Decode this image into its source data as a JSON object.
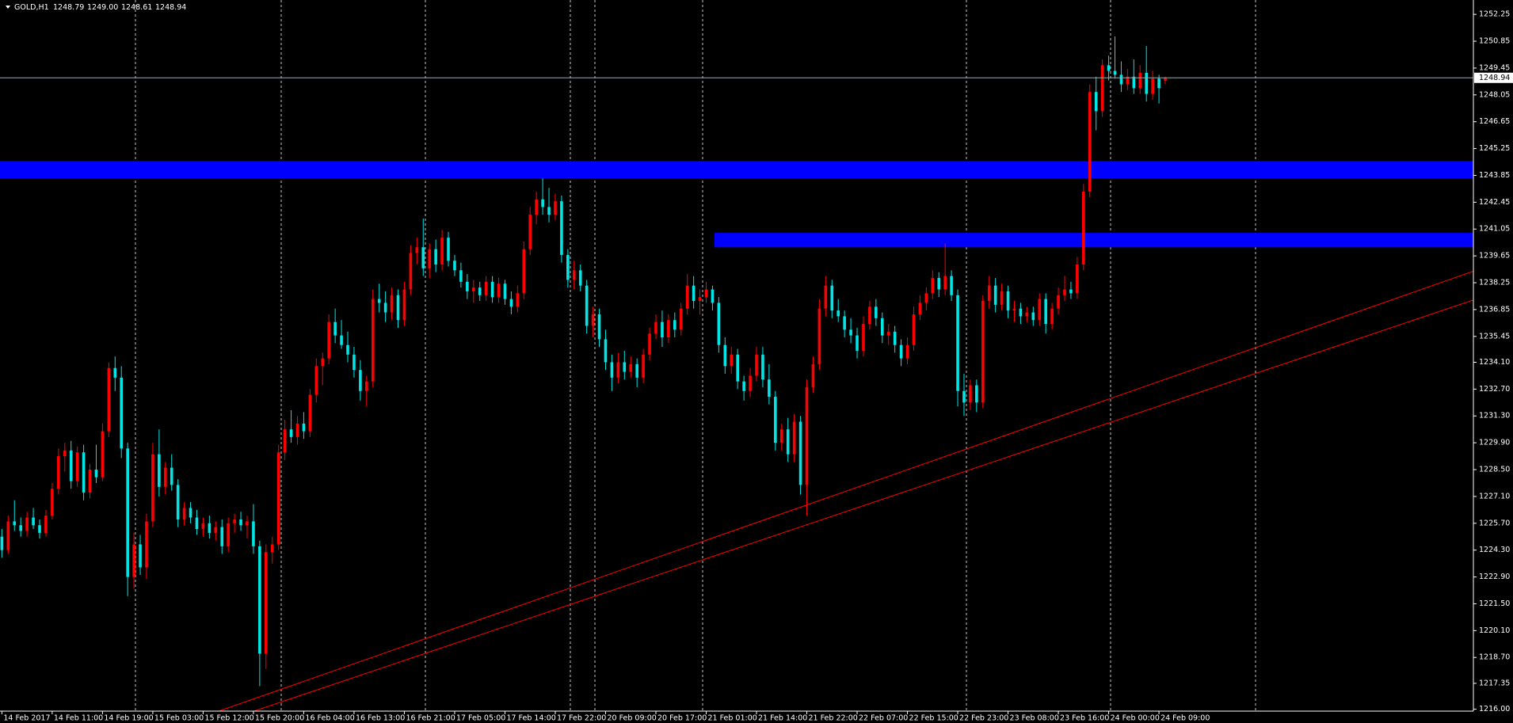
{
  "chart_data": {
    "type": "candlestick",
    "header": {
      "symbol": "GOLD,H1",
      "values": [
        "1248.79",
        "1249.00",
        "1248.61",
        "1248.94"
      ]
    },
    "up_color": "#ff0000",
    "down_color": "#00e6e6",
    "grid": true,
    "xlim": [
      -0.3,
      234
    ],
    "ylim": [
      1215.9,
      1253.0
    ],
    "xticks": [
      {
        "value": 0,
        "label": "14 Feb 2017"
      },
      {
        "value": 8,
        "label": "14 Feb 11:00"
      },
      {
        "value": 16,
        "label": "14 Feb 19:00"
      },
      {
        "value": 24,
        "label": "15 Feb 03:00"
      },
      {
        "value": 32,
        "label": "15 Feb 12:00"
      },
      {
        "value": 40,
        "label": "15 Feb 20:00"
      },
      {
        "value": 48,
        "label": "16 Feb 04:00"
      },
      {
        "value": 56,
        "label": "16 Feb 13:00"
      },
      {
        "value": 64,
        "label": "16 Feb 21:00"
      },
      {
        "value": 72,
        "label": "17 Feb 05:00"
      },
      {
        "value": 80,
        "label": "17 Feb 14:00"
      },
      {
        "value": 88,
        "label": "17 Feb 22:00"
      },
      {
        "value": 96,
        "label": "20 Feb 09:00"
      },
      {
        "value": 104,
        "label": "20 Feb 17:00"
      },
      {
        "value": 112,
        "label": "21 Feb 01:00"
      },
      {
        "value": 120,
        "label": "21 Feb 14:00"
      },
      {
        "value": 128,
        "label": "21 Feb 22:00"
      },
      {
        "value": 136,
        "label": "22 Feb 07:00"
      },
      {
        "value": 144,
        "label": "22 Feb 15:00"
      },
      {
        "value": 152,
        "label": "22 Feb 23:00"
      },
      {
        "value": 160,
        "label": "23 Feb 08:00"
      },
      {
        "value": 168,
        "label": "23 Feb 16:00"
      },
      {
        "value": 176,
        "label": "24 Feb 00:00"
      },
      {
        "value": 184,
        "label": "24 Feb 09:00"
      }
    ],
    "yticks": [
      1252.25,
      1250.85,
      1249.45,
      1248.05,
      1246.65,
      1245.25,
      1243.85,
      1242.45,
      1241.05,
      1239.65,
      1238.25,
      1236.85,
      1235.45,
      {
        "value": 1234.1,
        "label": "1234.10"
      },
      {
        "value": 1232.7,
        "label": "1232.70"
      },
      {
        "value": 1231.3,
        "label": "1231.30"
      },
      {
        "value": 1229.9,
        "label": "1229.90"
      },
      {
        "value": 1228.5,
        "label": "1228.50"
      },
      {
        "value": 1227.1,
        "label": "1227.10"
      },
      {
        "value": 1225.7,
        "label": "1225.70"
      },
      {
        "value": 1224.3,
        "label": "1224.30"
      },
      {
        "value": 1222.9,
        "label": "1222.90"
      },
      {
        "value": 1221.5,
        "label": "1221.50"
      },
      {
        "value": 1220.1,
        "label": "1220.10"
      },
      {
        "value": 1218.7,
        "label": "1218.70"
      },
      1217.35,
      {
        "value": 1216,
        "label": "1216.00"
      }
    ],
    "zones": [
      {
        "from": 1243.7,
        "to": 1244.6,
        "start": -0.3,
        "color": "#0000ff"
      },
      {
        "from": 1240.1,
        "to": 1240.85,
        "start": 113.3,
        "color": "#0000ff"
      }
    ],
    "trendlines": [
      {
        "x": [
          34.5,
          234
        ],
        "y": [
          1215.9,
          1238.85
        ],
        "color": "#ff0000"
      },
      {
        "x": [
          40.1,
          234
        ],
        "y": [
          1215.9,
          1237.35
        ],
        "color": "#ff0000"
      }
    ],
    "candles": [
      [
        1225.0,
        1225.4,
        1223.9,
        1224.3
      ],
      [
        1224.3,
        1226.1,
        1224.1,
        1225.8
      ],
      [
        1225.8,
        1226.9,
        1225.3,
        1225.6
      ],
      [
        1225.6,
        1226.0,
        1225.0,
        1225.3
      ],
      [
        1225.3,
        1226.3,
        1225.0,
        1226.0
      ],
      [
        1226.0,
        1226.5,
        1225.4,
        1225.6
      ],
      [
        1225.6,
        1225.9,
        1224.9,
        1225.2
      ],
      [
        1225.2,
        1226.4,
        1225.0,
        1226.1
      ],
      [
        1226.1,
        1227.8,
        1225.9,
        1227.5
      ],
      [
        1227.5,
        1229.6,
        1227.2,
        1229.2
      ],
      [
        1229.2,
        1229.9,
        1228.4,
        1229.5
      ],
      [
        1229.5,
        1230.0,
        1227.5,
        1227.9
      ],
      [
        1227.9,
        1229.7,
        1227.6,
        1229.4
      ],
      [
        1229.4,
        1229.8,
        1226.9,
        1227.3
      ],
      [
        1227.3,
        1228.8,
        1227.0,
        1228.5
      ],
      [
        1228.5,
        1229.8,
        1227.8,
        1228.1
      ],
      [
        1228.1,
        1230.9,
        1227.9,
        1230.5
      ],
      [
        1230.5,
        1234.1,
        1230.2,
        1233.8
      ],
      [
        1233.8,
        1234.4,
        1232.6,
        1233.3
      ],
      [
        1233.3,
        1233.9,
        1229.1,
        1229.6
      ],
      [
        1229.6,
        1229.9,
        1221.9,
        1222.9
      ],
      [
        1222.9,
        1225.2,
        1222.3,
        1224.6
      ],
      [
        1224.6,
        1225.1,
        1223.0,
        1223.4
      ],
      [
        1223.4,
        1226.2,
        1222.8,
        1225.8
      ],
      [
        1225.8,
        1229.9,
        1225.5,
        1229.3
      ],
      [
        1229.3,
        1230.6,
        1227.1,
        1227.6
      ],
      [
        1227.6,
        1228.9,
        1227.2,
        1228.6
      ],
      [
        1228.6,
        1229.3,
        1227.4,
        1227.7
      ],
      [
        1227.7,
        1228.0,
        1225.5,
        1225.9
      ],
      [
        1225.9,
        1226.8,
        1225.6,
        1226.5
      ],
      [
        1226.5,
        1226.8,
        1225.7,
        1226.0
      ],
      [
        1226.0,
        1226.4,
        1225.1,
        1225.4
      ],
      [
        1225.4,
        1226.0,
        1225.0,
        1225.7
      ],
      [
        1225.7,
        1226.1,
        1224.9,
        1225.2
      ],
      [
        1225.2,
        1225.8,
        1224.8,
        1225.5
      ],
      [
        1225.5,
        1225.9,
        1224.1,
        1224.5
      ],
      [
        1224.5,
        1226.0,
        1224.2,
        1225.7
      ],
      [
        1225.7,
        1226.2,
        1225.2,
        1225.9
      ],
      [
        1225.9,
        1226.3,
        1225.3,
        1225.6
      ],
      [
        1225.6,
        1226.1,
        1224.9,
        1225.8
      ],
      [
        1225.8,
        1226.7,
        1224.1,
        1224.5
      ],
      [
        1224.5,
        1224.8,
        1217.2,
        1218.9
      ],
      [
        1218.9,
        1224.6,
        1218.1,
        1224.2
      ],
      [
        1224.2,
        1225.0,
        1223.6,
        1224.6
      ],
      [
        1224.6,
        1229.8,
        1224.3,
        1229.4
      ],
      [
        1229.4,
        1231.1,
        1229.0,
        1230.6
      ],
      [
        1230.6,
        1231.6,
        1229.9,
        1230.2
      ],
      [
        1230.2,
        1231.3,
        1229.8,
        1230.9
      ],
      [
        1230.9,
        1231.5,
        1230.1,
        1230.5
      ],
      [
        1230.5,
        1232.7,
        1230.2,
        1232.4
      ],
      [
        1232.4,
        1234.3,
        1232.0,
        1233.9
      ],
      [
        1233.9,
        1234.6,
        1232.9,
        1234.3
      ],
      [
        1234.3,
        1236.6,
        1234.0,
        1236.2
      ],
      [
        1236.2,
        1236.9,
        1235.1,
        1235.5
      ],
      [
        1235.5,
        1236.3,
        1234.8,
        1235.0
      ],
      [
        1235.0,
        1235.7,
        1234.1,
        1234.5
      ],
      [
        1234.5,
        1234.9,
        1233.3,
        1233.7
      ],
      [
        1233.7,
        1234.2,
        1232.1,
        1232.6
      ],
      [
        1232.6,
        1233.4,
        1231.8,
        1233.1
      ],
      [
        1233.1,
        1237.9,
        1232.8,
        1237.4
      ],
      [
        1237.4,
        1238.2,
        1236.7,
        1237.2
      ],
      [
        1237.2,
        1237.8,
        1236.2,
        1236.7
      ],
      [
        1236.7,
        1238.0,
        1236.3,
        1237.6
      ],
      [
        1237.6,
        1237.9,
        1235.9,
        1236.3
      ],
      [
        1236.3,
        1238.3,
        1236.0,
        1237.9
      ],
      [
        1237.9,
        1240.2,
        1237.6,
        1239.8
      ],
      [
        1239.8,
        1240.6,
        1239.2,
        1240.1
      ],
      [
        1240.1,
        1241.6,
        1238.6,
        1239.0
      ],
      [
        1239.0,
        1240.3,
        1238.5,
        1240.0
      ],
      [
        1240.0,
        1240.5,
        1238.8,
        1239.2
      ],
      [
        1239.2,
        1241.0,
        1238.9,
        1240.6
      ],
      [
        1240.6,
        1240.9,
        1239.1,
        1239.4
      ],
      [
        1239.4,
        1239.7,
        1238.6,
        1238.9
      ],
      [
        1238.9,
        1239.3,
        1238.0,
        1238.3
      ],
      [
        1238.3,
        1238.7,
        1237.4,
        1237.8
      ],
      [
        1237.8,
        1238.4,
        1237.2,
        1238.0
      ],
      [
        1238.0,
        1238.3,
        1237.3,
        1237.6
      ],
      [
        1237.6,
        1238.6,
        1237.3,
        1238.3
      ],
      [
        1238.3,
        1238.6,
        1237.2,
        1237.5
      ],
      [
        1237.5,
        1238.5,
        1237.2,
        1238.2
      ],
      [
        1238.2,
        1238.4,
        1237.1,
        1237.4
      ],
      [
        1237.4,
        1237.8,
        1236.6,
        1237.0
      ],
      [
        1237.0,
        1238.1,
        1236.7,
        1237.7
      ],
      [
        1237.7,
        1240.4,
        1237.4,
        1240.0
      ],
      [
        1240.0,
        1242.2,
        1239.7,
        1241.8
      ],
      [
        1241.8,
        1243.0,
        1241.3,
        1242.6
      ],
      [
        1242.6,
        1243.7,
        1241.8,
        1242.2
      ],
      [
        1242.2,
        1243.2,
        1241.4,
        1241.8
      ],
      [
        1241.8,
        1242.9,
        1241.5,
        1242.5
      ],
      [
        1242.5,
        1242.8,
        1239.3,
        1239.7
      ],
      [
        1239.7,
        1240.0,
        1238.0,
        1238.4
      ],
      [
        1238.4,
        1239.4,
        1237.9,
        1238.9
      ],
      [
        1238.9,
        1239.2,
        1237.8,
        1238.1
      ],
      [
        1238.1,
        1238.4,
        1235.6,
        1236.0
      ],
      [
        1236.0,
        1237.0,
        1235.4,
        1236.6
      ],
      [
        1236.6,
        1236.9,
        1234.9,
        1235.3
      ],
      [
        1235.3,
        1235.8,
        1233.7,
        1234.1
      ],
      [
        1234.1,
        1234.5,
        1232.6,
        1233.3
      ],
      [
        1233.3,
        1234.6,
        1233.0,
        1234.1
      ],
      [
        1234.1,
        1234.7,
        1233.2,
        1233.6
      ],
      [
        1233.6,
        1234.4,
        1233.3,
        1234.0
      ],
      [
        1234.0,
        1234.3,
        1232.8,
        1233.3
      ],
      [
        1233.3,
        1234.8,
        1233.0,
        1234.5
      ],
      [
        1234.5,
        1235.9,
        1234.2,
        1235.6
      ],
      [
        1235.6,
        1236.6,
        1235.3,
        1236.2
      ],
      [
        1236.2,
        1236.8,
        1234.9,
        1235.4
      ],
      [
        1235.4,
        1236.6,
        1235.1,
        1236.3
      ],
      [
        1236.3,
        1236.7,
        1235.4,
        1235.8
      ],
      [
        1235.8,
        1237.2,
        1235.5,
        1236.9
      ],
      [
        1236.9,
        1238.7,
        1236.6,
        1238.1
      ],
      [
        1238.1,
        1238.6,
        1236.9,
        1237.3
      ],
      [
        1237.3,
        1237.9,
        1236.6,
        1237.5
      ],
      [
        1237.5,
        1238.3,
        1237.2,
        1237.9
      ],
      [
        1237.9,
        1238.1,
        1236.8,
        1237.2
      ],
      [
        1237.2,
        1237.5,
        1234.6,
        1235.0
      ],
      [
        1235.0,
        1235.4,
        1233.5,
        1233.9
      ],
      [
        1233.9,
        1234.9,
        1233.5,
        1234.5
      ],
      [
        1234.5,
        1234.8,
        1232.7,
        1233.1
      ],
      [
        1233.1,
        1233.4,
        1232.1,
        1232.6
      ],
      [
        1232.6,
        1233.8,
        1232.3,
        1233.4
      ],
      [
        1233.4,
        1234.9,
        1233.1,
        1234.5
      ],
      [
        1234.5,
        1234.9,
        1232.8,
        1233.2
      ],
      [
        1233.2,
        1234.0,
        1231.9,
        1232.3
      ],
      [
        1232.3,
        1232.6,
        1229.5,
        1229.9
      ],
      [
        1229.9,
        1230.9,
        1229.5,
        1230.6
      ],
      [
        1230.6,
        1231.2,
        1228.9,
        1229.3
      ],
      [
        1229.3,
        1231.4,
        1228.9,
        1231.0
      ],
      [
        1231.0,
        1231.3,
        1227.2,
        1227.7
      ],
      [
        1227.7,
        1233.2,
        1226.1,
        1232.8
      ],
      [
        1232.8,
        1234.4,
        1232.5,
        1234.0
      ],
      [
        1234.0,
        1237.4,
        1233.7,
        1236.9
      ],
      [
        1236.9,
        1238.6,
        1236.5,
        1238.1
      ],
      [
        1238.1,
        1238.4,
        1236.4,
        1236.8
      ],
      [
        1236.8,
        1237.4,
        1236.2,
        1236.5
      ],
      [
        1236.5,
        1236.8,
        1235.4,
        1235.8
      ],
      [
        1235.8,
        1236.4,
        1235.1,
        1235.5
      ],
      [
        1235.5,
        1235.9,
        1234.3,
        1234.7
      ],
      [
        1234.7,
        1236.5,
        1234.4,
        1236.1
      ],
      [
        1236.1,
        1237.3,
        1235.8,
        1237.0
      ],
      [
        1237.0,
        1237.4,
        1236.0,
        1236.4
      ],
      [
        1236.4,
        1236.7,
        1235.1,
        1235.5
      ],
      [
        1235.5,
        1236.1,
        1235.0,
        1235.7
      ],
      [
        1235.7,
        1236.0,
        1234.6,
        1235.0
      ],
      [
        1235.0,
        1235.3,
        1233.9,
        1234.3
      ],
      [
        1234.3,
        1235.4,
        1234.0,
        1235.0
      ],
      [
        1235.0,
        1237.0,
        1234.7,
        1236.6
      ],
      [
        1236.6,
        1237.6,
        1236.3,
        1237.2
      ],
      [
        1237.2,
        1238.0,
        1236.8,
        1237.7
      ],
      [
        1237.7,
        1238.9,
        1237.4,
        1238.5
      ],
      [
        1238.5,
        1238.8,
        1237.5,
        1237.9
      ],
      [
        1237.9,
        1240.3,
        1237.6,
        1238.6
      ],
      [
        1238.6,
        1238.9,
        1237.3,
        1237.6
      ],
      [
        1237.6,
        1237.9,
        1231.8,
        1232.6
      ],
      [
        1232.6,
        1233.5,
        1231.3,
        1232.0
      ],
      [
        1232.0,
        1233.2,
        1231.6,
        1232.9
      ],
      [
        1232.9,
        1233.2,
        1231.5,
        1232.0
      ],
      [
        1232.0,
        1237.6,
        1231.7,
        1237.3
      ],
      [
        1237.3,
        1238.6,
        1236.9,
        1238.1
      ],
      [
        1238.1,
        1238.5,
        1236.7,
        1237.1
      ],
      [
        1237.1,
        1238.2,
        1236.8,
        1237.8
      ],
      [
        1237.8,
        1238.1,
        1236.4,
        1236.8
      ],
      [
        1236.8,
        1237.3,
        1236.2,
        1236.9
      ],
      [
        1236.9,
        1237.2,
        1236.1,
        1236.5
      ],
      [
        1236.5,
        1237.0,
        1236.2,
        1236.7
      ],
      [
        1236.7,
        1237.0,
        1236.0,
        1236.3
      ],
      [
        1236.3,
        1237.7,
        1236.0,
        1237.4
      ],
      [
        1237.4,
        1237.7,
        1235.6,
        1236.1
      ],
      [
        1236.1,
        1237.2,
        1235.8,
        1236.9
      ],
      [
        1236.9,
        1238.0,
        1236.6,
        1237.6
      ],
      [
        1237.6,
        1238.6,
        1237.3,
        1237.9
      ],
      [
        1237.9,
        1238.3,
        1237.4,
        1237.7
      ],
      [
        1237.7,
        1239.6,
        1237.4,
        1239.2
      ],
      [
        1239.2,
        1243.4,
        1238.9,
        1243.0
      ],
      [
        1243.0,
        1248.6,
        1242.7,
        1248.2
      ],
      [
        1248.2,
        1249.0,
        1246.2,
        1247.2
      ],
      [
        1247.2,
        1249.9,
        1246.9,
        1249.6
      ],
      [
        1249.6,
        1250.1,
        1248.8,
        1249.3
      ],
      [
        1249.3,
        1251.1,
        1248.9,
        1249.1
      ],
      [
        1249.1,
        1249.8,
        1248.2,
        1248.6
      ],
      [
        1248.6,
        1249.4,
        1248.3,
        1249.0
      ],
      [
        1249.0,
        1249.9,
        1248.1,
        1248.4
      ],
      [
        1248.4,
        1249.6,
        1248.1,
        1249.2
      ],
      [
        1249.2,
        1250.6,
        1247.7,
        1248.1
      ],
      [
        1248.1,
        1249.3,
        1247.8,
        1248.9
      ],
      [
        1248.9,
        1249.1,
        1247.6,
        1248.4
      ],
      [
        1248.79,
        1249.0,
        1248.61,
        1248.94
      ]
    ]
  }
}
